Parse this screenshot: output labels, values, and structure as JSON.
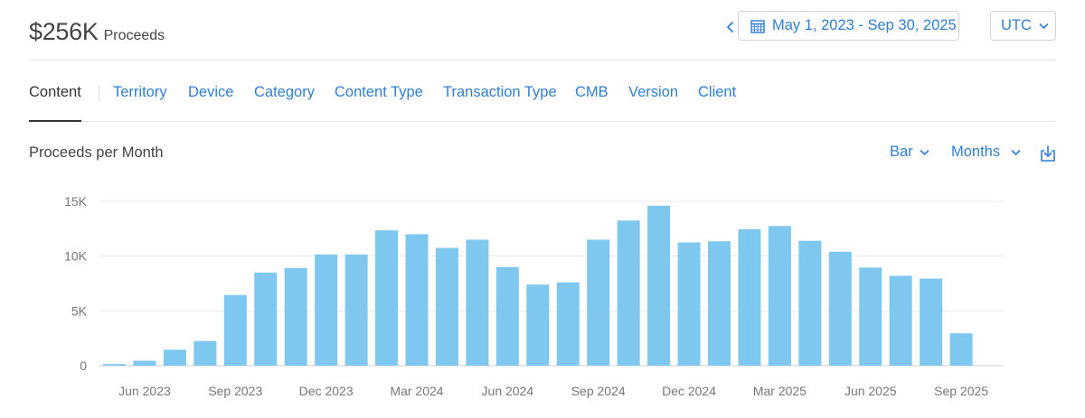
{
  "summary": {
    "amount": "$256K",
    "label": "Proceeds"
  },
  "date_range": {
    "label": "May 1, 2023 - Sep 30, 2025"
  },
  "timezone": {
    "label": "UTC"
  },
  "tabs": [
    {
      "label": "Content",
      "active": true
    },
    {
      "label": "Territory"
    },
    {
      "label": "Device"
    },
    {
      "label": "Category"
    },
    {
      "label": "Content Type"
    },
    {
      "label": "Transaction Type"
    },
    {
      "label": "CMB"
    },
    {
      "label": "Version"
    },
    {
      "label": "Client"
    }
  ],
  "chart_panel": {
    "title": "Proceeds per Month",
    "chart_type_label": "Bar",
    "interval_label": "Months"
  },
  "icons": {
    "prev": "chevron-left-icon",
    "calendar": "calendar-icon",
    "dropdown": "chevron-down-icon",
    "download": "download-icon"
  },
  "colors": {
    "accent": "#2f7fd8",
    "bar": "#7ec7ee"
  },
  "chart_data": {
    "type": "bar",
    "title": "Proceeds per Month",
    "xlabel": "",
    "ylabel": "",
    "ylim": [
      0,
      15000
    ],
    "yticks": [
      {
        "value": 0,
        "label": "0"
      },
      {
        "value": 5000,
        "label": "5K"
      },
      {
        "value": 10000,
        "label": "10K"
      },
      {
        "value": 15000,
        "label": "15K"
      }
    ],
    "x_tick_labels": [
      {
        "index": 1,
        "label": "Jun 2023"
      },
      {
        "index": 4,
        "label": "Sep 2023"
      },
      {
        "index": 7,
        "label": "Dec 2023"
      },
      {
        "index": 10,
        "label": "Mar 2024"
      },
      {
        "index": 13,
        "label": "Jun 2024"
      },
      {
        "index": 16,
        "label": "Sep 2024"
      },
      {
        "index": 19,
        "label": "Dec 2024"
      },
      {
        "index": 22,
        "label": "Mar 2025"
      },
      {
        "index": 25,
        "label": "Jun 2025"
      },
      {
        "index": 28,
        "label": "Sep 2025"
      }
    ],
    "categories": [
      "May 2023",
      "Jun 2023",
      "Jul 2023",
      "Aug 2023",
      "Sep 2023",
      "Oct 2023",
      "Nov 2023",
      "Dec 2023",
      "Jan 2024",
      "Feb 2024",
      "Mar 2024",
      "Apr 2024",
      "May 2024",
      "Jun 2024",
      "Jul 2024",
      "Aug 2024",
      "Sep 2024",
      "Oct 2024",
      "Nov 2024",
      "Dec 2024",
      "Jan 2025",
      "Feb 2025",
      "Mar 2025",
      "Apr 2025",
      "May 2025",
      "Jun 2025",
      "Jul 2025",
      "Aug 2025",
      "Sep 2025"
    ],
    "values": [
      150,
      450,
      1450,
      2250,
      6450,
      8500,
      8900,
      10150,
      10150,
      12350,
      12000,
      10750,
      11500,
      9000,
      7400,
      7600,
      11500,
      13250,
      14600,
      11250,
      11350,
      12450,
      12750,
      11400,
      10400,
      8950,
      8200,
      7950,
      2950
    ],
    "grid": true,
    "legend": "none"
  }
}
